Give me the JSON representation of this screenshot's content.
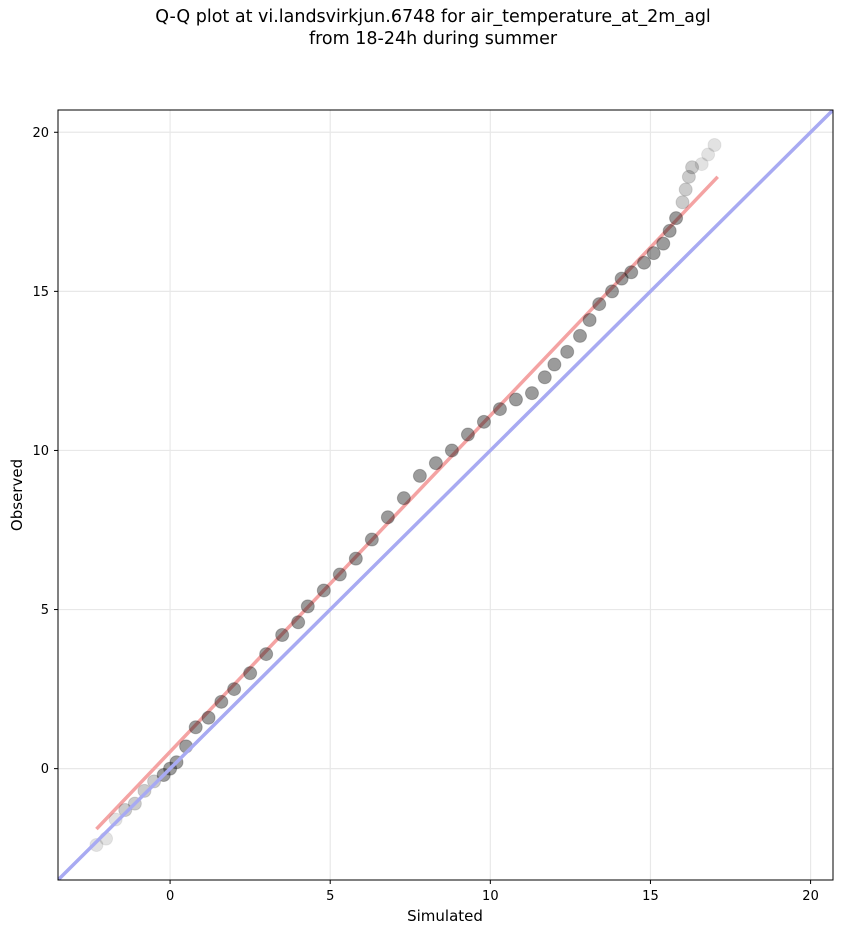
{
  "title": {
    "line1": "Q-Q plot at vi.landsvirkjun.6748 for air_temperature_at_2m_agl",
    "line2": "from 18-24h during summer"
  },
  "chart_data": {
    "type": "scatter",
    "title": "Q-Q plot at vi.landsvirkjun.6748 for air_temperature_at_2m_agl from 18-24h during summer",
    "xlabel": "Simulated",
    "ylabel": "Observed",
    "xlim": [
      -3.5,
      20.7
    ],
    "ylim": [
      -3.5,
      20.7
    ],
    "x_ticks": [
      0,
      5,
      10,
      15,
      20
    ],
    "y_ticks": [
      0,
      5,
      10,
      15,
      20
    ],
    "x_tick_labels": [
      "0",
      "5",
      "10",
      "15",
      "20"
    ],
    "y_tick_labels": [
      "0",
      "5",
      "10",
      "15",
      "20"
    ],
    "grid": true,
    "series": [
      {
        "kind": "quantile points",
        "color": "#000000",
        "points": [
          [
            -2.3,
            -2.4
          ],
          [
            -2.0,
            -2.2
          ],
          [
            -1.7,
            -1.6
          ],
          [
            -1.4,
            -1.3
          ],
          [
            -1.1,
            -1.1
          ],
          [
            -0.8,
            -0.7
          ],
          [
            -0.5,
            -0.4
          ],
          [
            -0.2,
            -0.2
          ],
          [
            0.0,
            0.0
          ],
          [
            0.2,
            0.2
          ],
          [
            0.5,
            0.7
          ],
          [
            0.8,
            1.3
          ],
          [
            1.2,
            1.6
          ],
          [
            1.6,
            2.1
          ],
          [
            2.0,
            2.5
          ],
          [
            2.5,
            3.0
          ],
          [
            3.0,
            3.6
          ],
          [
            3.5,
            4.2
          ],
          [
            4.0,
            4.6
          ],
          [
            4.3,
            5.1
          ],
          [
            4.8,
            5.6
          ],
          [
            5.3,
            6.1
          ],
          [
            5.8,
            6.6
          ],
          [
            6.3,
            7.2
          ],
          [
            6.8,
            7.9
          ],
          [
            7.3,
            8.5
          ],
          [
            7.8,
            9.2
          ],
          [
            8.3,
            9.6
          ],
          [
            8.8,
            10.0
          ],
          [
            9.3,
            10.5
          ],
          [
            9.8,
            10.9
          ],
          [
            10.3,
            11.3
          ],
          [
            10.8,
            11.6
          ],
          [
            11.3,
            11.8
          ],
          [
            11.7,
            12.3
          ],
          [
            12.0,
            12.7
          ],
          [
            12.4,
            13.1
          ],
          [
            12.8,
            13.6
          ],
          [
            13.1,
            14.1
          ],
          [
            13.4,
            14.6
          ],
          [
            13.8,
            15.0
          ],
          [
            14.1,
            15.4
          ],
          [
            14.4,
            15.6
          ],
          [
            14.8,
            15.9
          ],
          [
            15.1,
            16.2
          ],
          [
            15.4,
            16.5
          ],
          [
            15.6,
            16.9
          ],
          [
            15.8,
            17.3
          ],
          [
            16.0,
            17.8
          ],
          [
            16.1,
            18.2
          ],
          [
            16.2,
            18.6
          ],
          [
            16.3,
            18.9
          ],
          [
            16.6,
            19.0
          ],
          [
            16.8,
            19.3
          ],
          [
            17.0,
            19.6
          ]
        ]
      },
      {
        "kind": "fit line",
        "color": "#f4a3a3",
        "from": [
          -2.3,
          -1.9
        ],
        "to": [
          17.1,
          18.6
        ]
      },
      {
        "kind": "identity line",
        "color": "#a8aaf2",
        "from": [
          -3.5,
          -3.5
        ],
        "to": [
          20.7,
          20.7
        ]
      }
    ]
  }
}
